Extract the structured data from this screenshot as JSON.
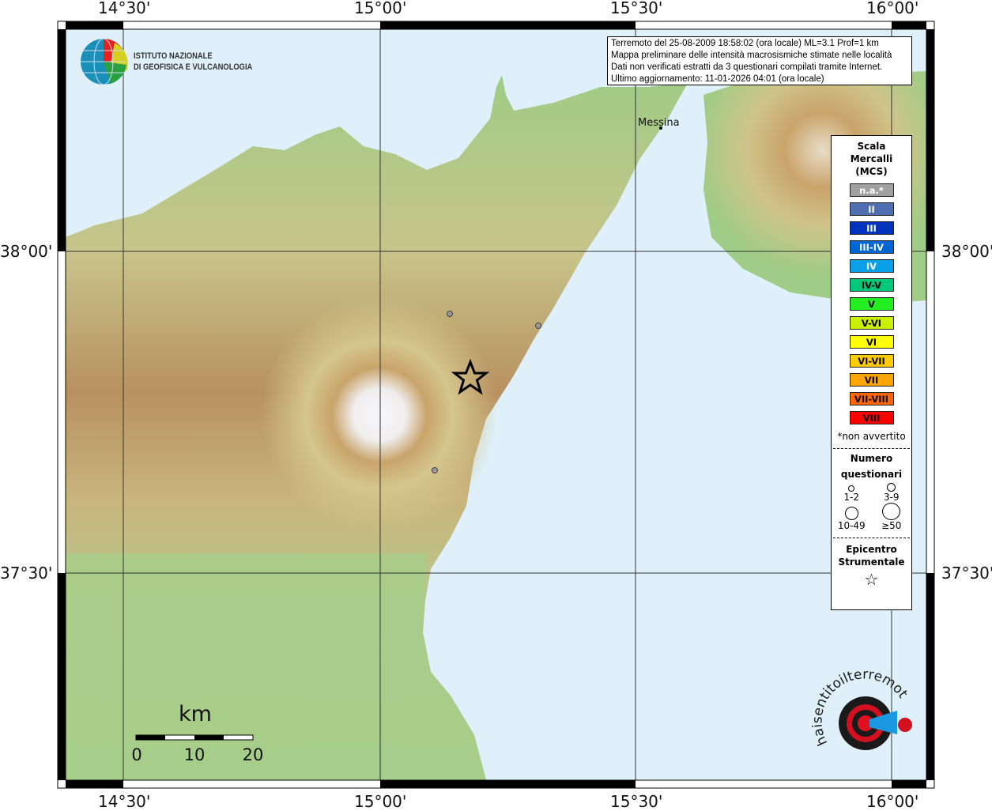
{
  "map": {
    "longitude_labels": [
      "14°30'",
      "15°00'",
      "15°30'",
      "16°00'"
    ],
    "latitude_labels": [
      "38°00'",
      "37°30'"
    ],
    "place_labels": [
      "Messina"
    ],
    "colors": {
      "sea": "#dff0fb",
      "lowland": "#a9cf8c",
      "hills": "#c9c78a",
      "mountains": "#b08a4e",
      "summit": "#f5f5fa"
    }
  },
  "logo_ingv": {
    "line1": "ISTITUTO NAZIONALE",
    "line2": "DI GEOFISICA E VULCANOLOGIA"
  },
  "logo_haisentito": "www.haisentitoilterremoto.it",
  "info": {
    "line1": "Terremoto del 25-08-2009 18:58:02 (ora locale) ML=3.1 Prof=1 km",
    "line2": "Mappa preliminare delle intensità macrosismiche stimate nelle località",
    "line3": "Dati non verificati estratti da 3 questionari compilati tramite Internet.",
    "line4": "Ultimo aggiornamento: 11-01-2026 04:01 (ora locale)"
  },
  "legend": {
    "title_lines": [
      "Scala",
      "Mercalli",
      "(MCS)"
    ],
    "scale": [
      {
        "label": "n.a.*",
        "color": "#a0a0a0",
        "text": "#ffffff"
      },
      {
        "label": "II",
        "color": "#4f6fb0",
        "text": "#ffffff"
      },
      {
        "label": "III",
        "color": "#0033bb",
        "text": "#ffffff"
      },
      {
        "label": "III-IV",
        "color": "#0066d4",
        "text": "#ffffff"
      },
      {
        "label": "IV",
        "color": "#0aa0e8",
        "text": "#ffffff"
      },
      {
        "label": "IV-V",
        "color": "#00c878",
        "text": "#000000"
      },
      {
        "label": "V",
        "color": "#22ee22",
        "text": "#000000"
      },
      {
        "label": "V-VI",
        "color": "#c8f000",
        "text": "#000000"
      },
      {
        "label": "VI",
        "color": "#ffff00",
        "text": "#000000"
      },
      {
        "label": "VI-VII",
        "color": "#ffcc00",
        "text": "#000000"
      },
      {
        "label": "VII",
        "color": "#ffa500",
        "text": "#000000"
      },
      {
        "label": "VII-VIII",
        "color": "#ff6600",
        "text": "#000000"
      },
      {
        "label": "VIII",
        "color": "#ff0000",
        "text": "#000000"
      }
    ],
    "note": "*non avvertito",
    "count_title_lines": [
      "Numero",
      "questionari"
    ],
    "counts": [
      "1-2",
      "3-9",
      "10-49",
      "≥50"
    ],
    "epicenter_title_lines": [
      "Epicentro",
      "Strumentale"
    ]
  },
  "scalebar": {
    "unit": "km",
    "labels": [
      "0",
      "10",
      "20"
    ]
  }
}
